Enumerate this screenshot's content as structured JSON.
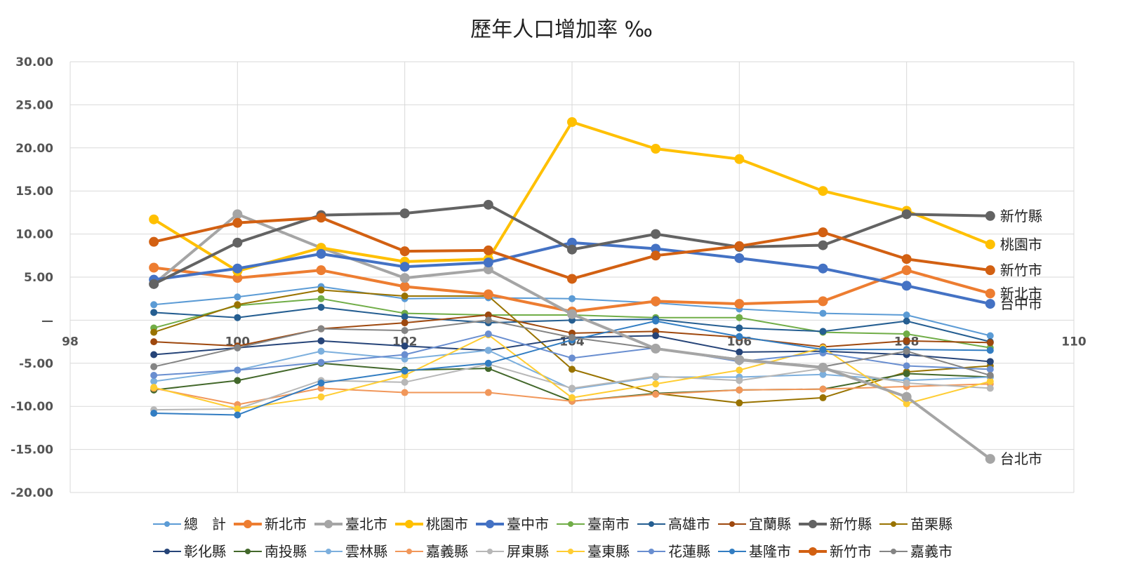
{
  "chart_data": {
    "type": "line",
    "title": "歷年人口增加率 ‰",
    "xlabel": "",
    "ylabel": "",
    "xlim": [
      98,
      110
    ],
    "ylim": [
      -20,
      30
    ],
    "x_ticks": [
      "98",
      "100",
      "102",
      "104",
      "106",
      "108",
      "110"
    ],
    "y_ticks": [
      "30.00",
      "25.00",
      "20.00",
      "15.00",
      "10.00",
      "5.00",
      "—",
      "-5.00",
      "-10.00",
      "-15.00",
      "-20.00"
    ],
    "grid": true,
    "legend_position": "bottom",
    "x": [
      99,
      100,
      101,
      102,
      103,
      104,
      105,
      106,
      107,
      108,
      109
    ],
    "series": [
      {
        "name": "總　計",
        "color": "#5B9BD5",
        "width": 2,
        "r": 5,
        "values": [
          1.8,
          2.7,
          3.9,
          2.5,
          2.6,
          2.5,
          2.0,
          1.3,
          0.8,
          0.6,
          -1.8
        ]
      },
      {
        "name": "新北市",
        "color": "#ED7D31",
        "width": 4,
        "r": 7,
        "values": [
          6.1,
          4.9,
          5.8,
          3.9,
          3.0,
          1.0,
          2.2,
          1.9,
          2.2,
          5.8,
          3.1
        ]
      },
      {
        "name": "臺北市",
        "color": "#A5A5A5",
        "width": 4,
        "r": 7,
        "values": [
          4.2,
          12.3,
          8.4,
          4.9,
          5.9,
          0.7,
          -3.3,
          -4.6,
          -5.5,
          -8.9,
          -16.1
        ]
      },
      {
        "name": "桃園市",
        "color": "#FFC000",
        "width": 4,
        "r": 7,
        "values": [
          11.7,
          5.7,
          8.4,
          6.8,
          7.1,
          23.0,
          19.9,
          18.7,
          15.0,
          12.7,
          8.8
        ]
      },
      {
        "name": "臺中市",
        "color": "#4472C4",
        "width": 4,
        "r": 7,
        "values": [
          4.7,
          6.0,
          7.7,
          6.2,
          6.7,
          9.0,
          8.3,
          7.2,
          6.0,
          4.0,
          1.9
        ]
      },
      {
        "name": "臺南市",
        "color": "#70AD47",
        "width": 2,
        "r": 5,
        "values": [
          -0.9,
          1.7,
          2.5,
          0.8,
          0.6,
          0.6,
          0.3,
          0.3,
          -1.4,
          -1.6,
          -3.2
        ]
      },
      {
        "name": "高雄市",
        "color": "#255E91",
        "width": 2,
        "r": 5,
        "values": [
          0.9,
          0.3,
          1.5,
          0.4,
          -0.3,
          0.0,
          0.1,
          -0.9,
          -1.3,
          -0.1,
          -2.5
        ]
      },
      {
        "name": "宜蘭縣",
        "color": "#9E480E",
        "width": 2,
        "r": 5,
        "values": [
          -2.5,
          -3.0,
          -1.0,
          -0.3,
          0.6,
          -1.5,
          -1.3,
          -2.0,
          -3.1,
          -2.4,
          -2.6
        ]
      },
      {
        "name": "新竹縣",
        "color": "#636363",
        "width": 4,
        "r": 7,
        "values": [
          4.2,
          9.0,
          12.2,
          12.4,
          13.4,
          8.2,
          10.0,
          8.5,
          8.7,
          12.3,
          12.1
        ]
      },
      {
        "name": "苗栗縣",
        "color": "#997300",
        "width": 2,
        "r": 5,
        "values": [
          -1.4,
          1.8,
          3.5,
          2.8,
          2.8,
          -5.7,
          -8.5,
          -9.6,
          -9.0,
          -6.0,
          -5.3
        ]
      },
      {
        "name": "彰化縣",
        "color": "#264478",
        "width": 2,
        "r": 5,
        "values": [
          -4.0,
          -3.2,
          -2.4,
          -3.0,
          -3.5,
          -2.0,
          -1.8,
          -3.7,
          -3.6,
          -4.0,
          -4.8
        ]
      },
      {
        "name": "南投縣",
        "color": "#43682B",
        "width": 2,
        "r": 5,
        "values": [
          -8.1,
          -7.0,
          -5.0,
          -5.8,
          -5.6,
          -9.4,
          -8.5,
          -8.1,
          -8.0,
          -6.2,
          -6.6
        ]
      },
      {
        "name": "雲林縣",
        "color": "#7CAFDD",
        "width": 2,
        "r": 5,
        "values": [
          -7.1,
          -5.8,
          -3.6,
          -4.5,
          -3.5,
          -8.0,
          -6.6,
          -6.6,
          -6.3,
          -7.0,
          -6.6
        ]
      },
      {
        "name": "嘉義縣",
        "color": "#F1975A",
        "width": 2,
        "r": 5,
        "values": [
          -7.9,
          -9.8,
          -7.9,
          -8.4,
          -8.4,
          -9.4,
          -8.6,
          -8.1,
          -8.0,
          -7.7,
          -7.4
        ]
      },
      {
        "name": "屏東縣",
        "color": "#B7B7B7",
        "width": 2,
        "r": 5,
        "values": [
          -10.4,
          -10.3,
          -7.0,
          -7.2,
          -5.1,
          -7.9,
          -6.5,
          -7.0,
          -5.6,
          -7.3,
          -7.9
        ]
      },
      {
        "name": "臺東縣",
        "color": "#FFCD33",
        "width": 2,
        "r": 5,
        "values": [
          -7.8,
          -10.3,
          -8.9,
          -6.4,
          -1.7,
          -9.0,
          -7.4,
          -5.8,
          -3.2,
          -9.7,
          -7.1
        ]
      },
      {
        "name": "花蓮縣",
        "color": "#698ED0",
        "width": 2,
        "r": 5,
        "values": [
          -6.4,
          -5.8,
          -4.9,
          -4.0,
          -1.6,
          -4.4,
          -3.2,
          -4.8,
          -3.8,
          -5.3,
          -5.7
        ]
      },
      {
        "name": "基隆市",
        "color": "#327DC2",
        "width": 2,
        "r": 5,
        "values": [
          -10.8,
          -11.0,
          -7.3,
          -5.9,
          -5.0,
          -2.3,
          -0.1,
          -1.9,
          -3.4,
          -3.4,
          -3.5
        ]
      },
      {
        "name": "新竹市",
        "color": "#D26012",
        "width": 4,
        "r": 7,
        "values": [
          9.1,
          11.3,
          11.9,
          8.0,
          8.1,
          4.8,
          7.5,
          8.6,
          10.2,
          7.1,
          5.8
        ]
      },
      {
        "name": "嘉義市",
        "color": "#848484",
        "width": 2,
        "r": 5,
        "values": [
          -5.4,
          -3.2,
          -1.0,
          -1.2,
          0.0,
          -2.0,
          -3.3,
          -4.5,
          -5.4,
          -3.6,
          -6.4
        ]
      }
    ],
    "annotations": [
      {
        "text": "新竹縣",
        "series": "新竹縣"
      },
      {
        "text": "桃園市",
        "series": "桃園市"
      },
      {
        "text": "新竹市",
        "series": "新竹市"
      },
      {
        "text": "新北市",
        "series": "新北市"
      },
      {
        "text": "台中市",
        "series": "臺中市"
      },
      {
        "text": "台北市",
        "series": "臺北市"
      }
    ]
  }
}
